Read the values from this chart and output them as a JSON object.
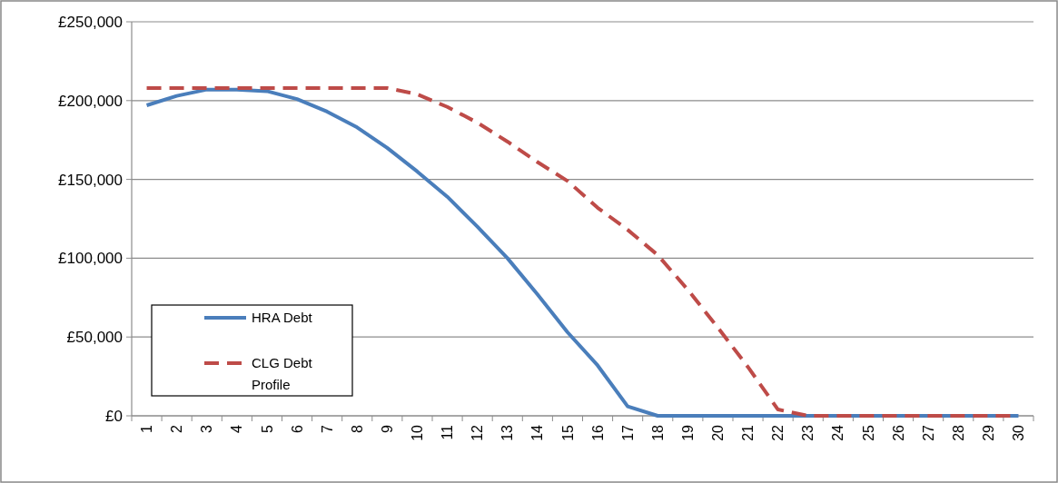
{
  "chart_data": {
    "type": "line",
    "categories": [
      "1",
      "2",
      "3",
      "4",
      "5",
      "6",
      "7",
      "8",
      "9",
      "10",
      "11",
      "12",
      "13",
      "14",
      "15",
      "16",
      "17",
      "18",
      "19",
      "20",
      "21",
      "22",
      "23",
      "24",
      "25",
      "26",
      "27",
      "28",
      "29",
      "30"
    ],
    "series": [
      {
        "name": "HRA Debt",
        "color": "#4a7ebb",
        "line_style": "solid",
        "values": [
          197000,
          203000,
          207000,
          207000,
          206000,
          201000,
          193000,
          183000,
          170000,
          155000,
          139000,
          120000,
          100000,
          77000,
          53000,
          32000,
          6000,
          0,
          0,
          0,
          0,
          0,
          0,
          0,
          0,
          0,
          0,
          0,
          0,
          0
        ]
      },
      {
        "name": "CLG Debt Profile",
        "color": "#be4b48",
        "line_style": "dashed",
        "values": [
          208000,
          208000,
          208000,
          208000,
          208000,
          208000,
          208000,
          208000,
          208000,
          204000,
          196000,
          186000,
          174000,
          161000,
          149000,
          132000,
          118000,
          102000,
          80000,
          56000,
          31000,
          4000,
          0,
          0,
          0,
          0,
          0,
          0,
          0,
          0
        ]
      }
    ],
    "ylim": [
      0,
      250000
    ],
    "yticks": [
      {
        "value": 0,
        "label": "£0"
      },
      {
        "value": 50000,
        "label": "£50,000"
      },
      {
        "value": 100000,
        "label": "£100,000"
      },
      {
        "value": 150000,
        "label": "£150,000"
      },
      {
        "value": 200000,
        "label": "£200,000"
      },
      {
        "value": 250000,
        "label": "£250,000"
      }
    ],
    "grid": "y",
    "legend": "bottom left",
    "marker": "none"
  }
}
